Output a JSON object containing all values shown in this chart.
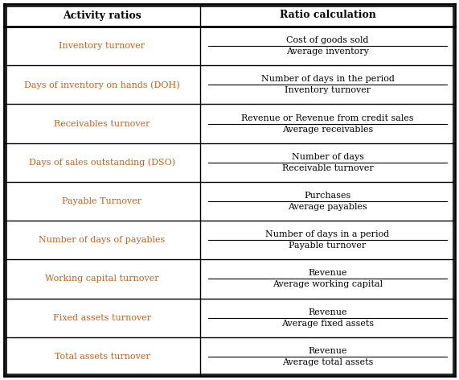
{
  "title_left": "Activity ratios",
  "title_right": "Ratio calculation",
  "rows": [
    {
      "left": "Inventory turnover",
      "numerator": "Cost of goods sold",
      "denominator": "Average inventory",
      "left_color": "#c8601a",
      "left_italic": false
    },
    {
      "left": "Days of inventory on hands (DOH)",
      "numerator": "Number of days in the period",
      "denominator": "Inventory turnover",
      "left_color": "#c8601a",
      "left_italic": false
    },
    {
      "left": "Receivables turnover",
      "numerator": "Revenue or Revenue from credit sales",
      "denominator": "Average receivables",
      "left_color": "#c8601a",
      "left_italic": false
    },
    {
      "left": "Days of sales outstanding (DSO)",
      "numerator": "Number of days",
      "denominator": "Receivable turnover",
      "left_color": "#c8601a",
      "left_italic": false
    },
    {
      "left": "Payable Turnover",
      "numerator": "Purchases",
      "denominator": "Average payables",
      "left_color": "#c8601a",
      "left_italic": false
    },
    {
      "left": "Number of days of payables",
      "numerator": "Number of days in a period",
      "denominator": "Payable turnover",
      "left_color": "#c8601a",
      "left_italic": false
    },
    {
      "left": "Working capital turnover",
      "numerator": "Revenue",
      "denominator": "Average working capital",
      "left_color": "#c8601a",
      "left_italic": false
    },
    {
      "left": "Fixed assets turnover",
      "numerator": "Revenue",
      "denominator": "Average fixed assets",
      "left_color": "#c8601a",
      "left_italic": false
    },
    {
      "left": "Total assets turnover",
      "numerator": "Revenue",
      "denominator": "Average total assets",
      "left_color": "#c8601a",
      "left_italic": false
    }
  ],
  "col_split": 0.435,
  "header_text_color": "#000000",
  "border_color": "#000000",
  "font_size": 8.0,
  "header_font_size": 9.0
}
